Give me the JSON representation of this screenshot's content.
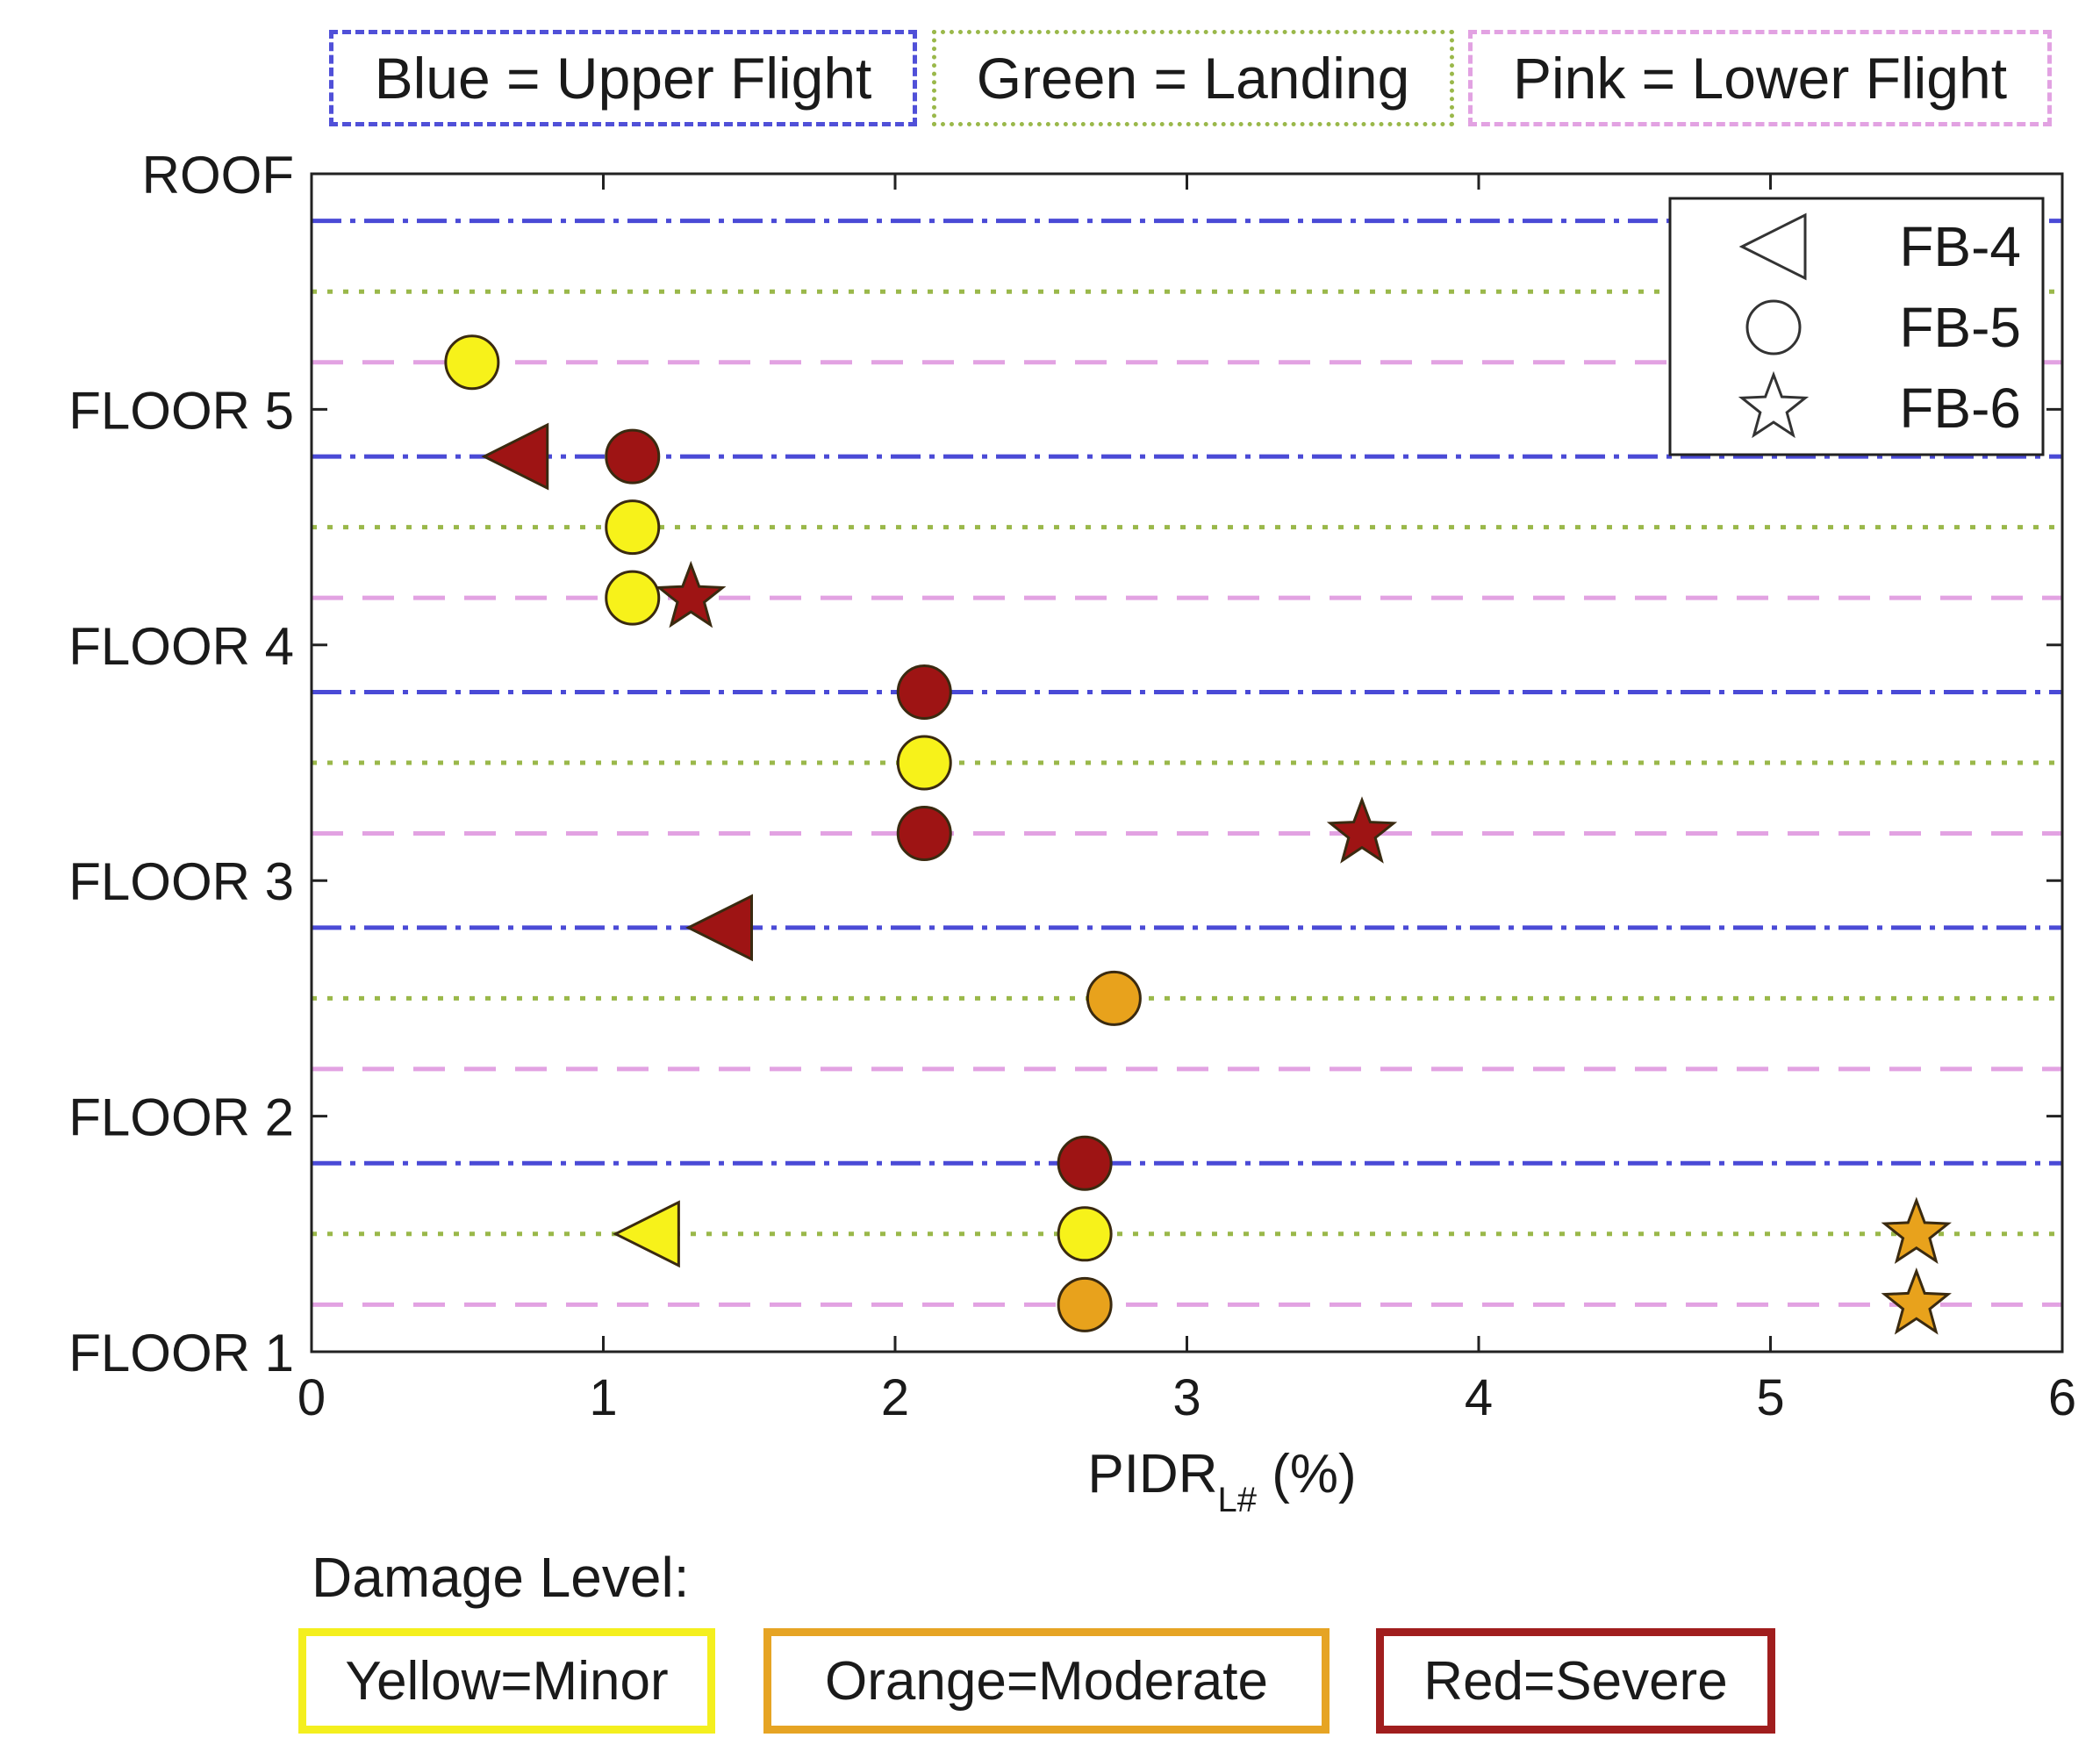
{
  "line_legend": {
    "blue": "Blue = Upper Flight",
    "green": "Green = Landing",
    "pink": "Pink = Lower Flight"
  },
  "damage_legend": {
    "title": "Damage Level:",
    "minor": "Yellow=Minor",
    "moderate": "Orange=Moderate",
    "severe": "Red=Severe"
  },
  "colors": {
    "upper_flight": "#4a4ad6",
    "landing": "#9ab84a",
    "lower_flight": "#e2a2e2",
    "minor": "#f7f21a",
    "moderate": "#e8a21c",
    "severe": "#9e1414"
  },
  "chart_data": {
    "type": "scatter",
    "xlabel": "PIDR",
    "xlabel_sub": "L#",
    "xlabel_unit": " (%)",
    "xlim": [
      0,
      6
    ],
    "x_ticks": [
      "0",
      "1",
      "2",
      "3",
      "4",
      "5",
      "6"
    ],
    "ylim": [
      1,
      6
    ],
    "y_ticks": [
      {
        "label": "FLOOR 1",
        "value": 1
      },
      {
        "label": "FLOOR 2",
        "value": 2
      },
      {
        "label": "FLOOR 3",
        "value": 3
      },
      {
        "label": "FLOOR 4",
        "value": 4
      },
      {
        "label": "FLOOR 5",
        "value": 5
      },
      {
        "label": "ROOF",
        "value": 6
      }
    ],
    "reference_lines": [
      {
        "type": "upper",
        "y": 1.8
      },
      {
        "type": "landing",
        "y": 1.5
      },
      {
        "type": "lower",
        "y": 1.2
      },
      {
        "type": "upper",
        "y": 2.8
      },
      {
        "type": "landing",
        "y": 2.5
      },
      {
        "type": "lower",
        "y": 2.2
      },
      {
        "type": "upper",
        "y": 3.8
      },
      {
        "type": "landing",
        "y": 3.5
      },
      {
        "type": "lower",
        "y": 3.2
      },
      {
        "type": "upper",
        "y": 4.8
      },
      {
        "type": "landing",
        "y": 4.5
      },
      {
        "type": "lower",
        "y": 4.2
      },
      {
        "type": "upper",
        "y": 5.8
      },
      {
        "type": "landing",
        "y": 5.5
      },
      {
        "type": "lower",
        "y": 5.2
      }
    ],
    "series": [
      {
        "name": "FB-4",
        "marker": "triangle",
        "points": [
          {
            "x": 0.7,
            "y": 4.8,
            "damage": "severe"
          },
          {
            "x": 1.4,
            "y": 2.8,
            "damage": "severe"
          },
          {
            "x": 1.15,
            "y": 1.5,
            "damage": "minor"
          }
        ]
      },
      {
        "name": "FB-5",
        "marker": "circle",
        "points": [
          {
            "x": 0.55,
            "y": 5.2,
            "damage": "minor"
          },
          {
            "x": 1.1,
            "y": 4.8,
            "damage": "severe"
          },
          {
            "x": 1.1,
            "y": 4.5,
            "damage": "minor"
          },
          {
            "x": 1.1,
            "y": 4.2,
            "damage": "minor"
          },
          {
            "x": 2.1,
            "y": 3.8,
            "damage": "severe"
          },
          {
            "x": 2.1,
            "y": 3.5,
            "damage": "minor"
          },
          {
            "x": 2.1,
            "y": 3.2,
            "damage": "severe"
          },
          {
            "x": 2.75,
            "y": 2.5,
            "damage": "moderate"
          },
          {
            "x": 2.65,
            "y": 1.8,
            "damage": "severe"
          },
          {
            "x": 2.65,
            "y": 1.5,
            "damage": "minor"
          },
          {
            "x": 2.65,
            "y": 1.2,
            "damage": "moderate"
          }
        ]
      },
      {
        "name": "FB-6",
        "marker": "star",
        "points": [
          {
            "x": 1.3,
            "y": 4.2,
            "damage": "severe"
          },
          {
            "x": 3.6,
            "y": 3.2,
            "damage": "severe"
          },
          {
            "x": 5.5,
            "y": 1.5,
            "damage": "moderate"
          },
          {
            "x": 5.5,
            "y": 1.2,
            "damage": "moderate"
          }
        ]
      }
    ]
  }
}
